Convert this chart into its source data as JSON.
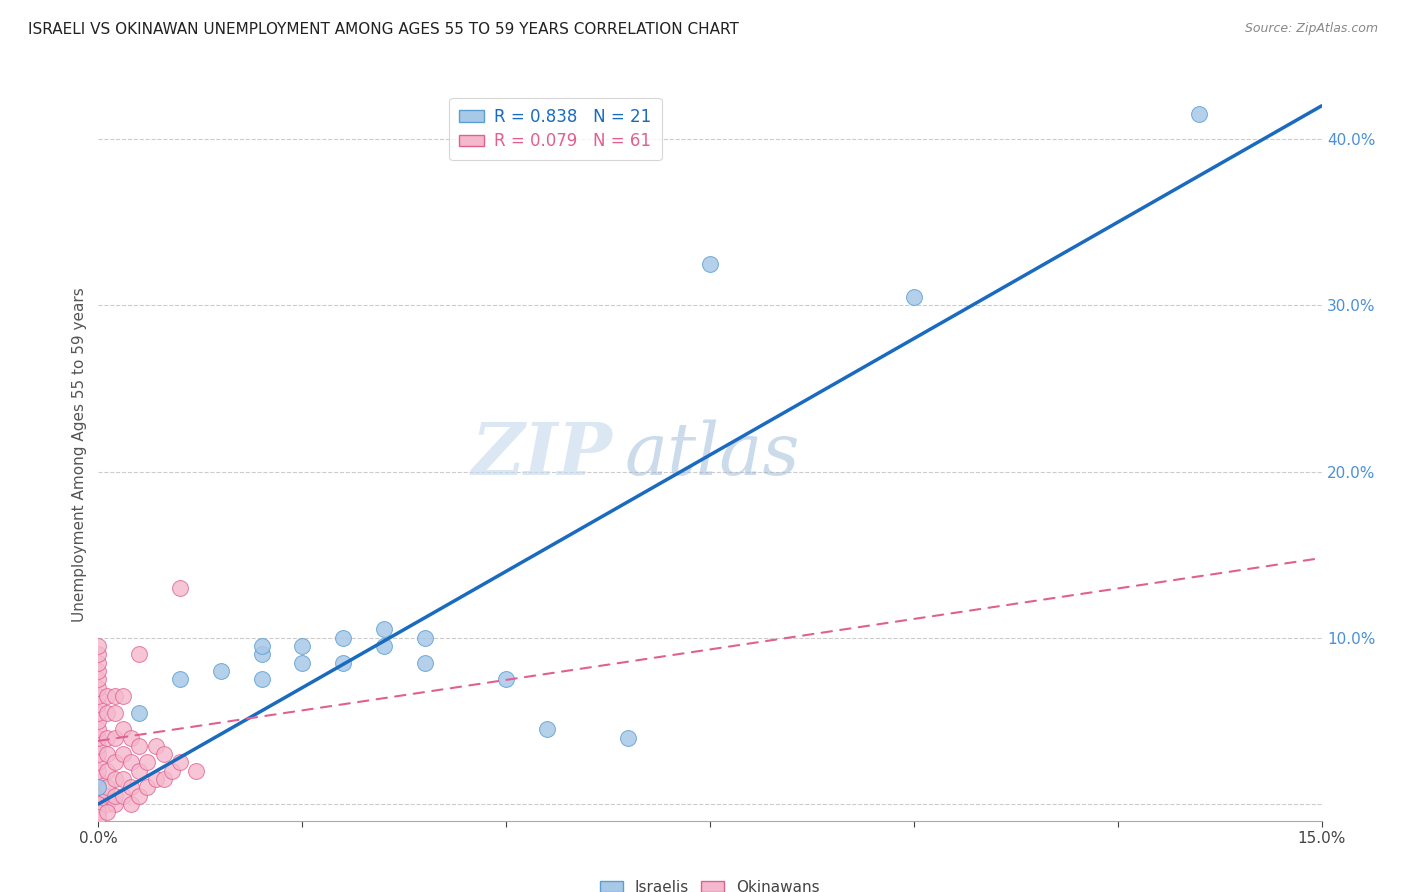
{
  "title": "ISRAELI VS OKINAWAN UNEMPLOYMENT AMONG AGES 55 TO 59 YEARS CORRELATION CHART",
  "source": "Source: ZipAtlas.com",
  "ylabel": "Unemployment Among Ages 55 to 59 years",
  "xlim": [
    0.0,
    0.15
  ],
  "ylim": [
    -0.01,
    0.43
  ],
  "x_ticks": [
    0.0,
    0.025,
    0.05,
    0.075,
    0.1,
    0.125,
    0.15
  ],
  "y_ticks_right": [
    0.0,
    0.1,
    0.2,
    0.3,
    0.4
  ],
  "israeli_color": "#a8c8e8",
  "israeli_edge": "#5a9fd4",
  "okinawan_color": "#f4b8cc",
  "okinawan_edge": "#e06090",
  "blue_line_color": "#1a6bbf",
  "pink_line_color": "#e06090",
  "legend_israeli_label": "R = 0.838   N = 21",
  "legend_okinawan_label": "R = 0.079   N = 61",
  "watermark_zip": "ZIP",
  "watermark_atlas": "atlas",
  "israeli_points": [
    [
      0.0,
      0.01
    ],
    [
      0.005,
      0.055
    ],
    [
      0.01,
      0.075
    ],
    [
      0.015,
      0.08
    ],
    [
      0.02,
      0.075
    ],
    [
      0.02,
      0.09
    ],
    [
      0.02,
      0.095
    ],
    [
      0.025,
      0.085
    ],
    [
      0.025,
      0.095
    ],
    [
      0.03,
      0.085
    ],
    [
      0.03,
      0.1
    ],
    [
      0.035,
      0.095
    ],
    [
      0.035,
      0.105
    ],
    [
      0.04,
      0.085
    ],
    [
      0.04,
      0.1
    ],
    [
      0.05,
      0.075
    ],
    [
      0.055,
      0.045
    ],
    [
      0.065,
      0.04
    ],
    [
      0.075,
      0.325
    ],
    [
      0.1,
      0.305
    ],
    [
      0.135,
      0.415
    ]
  ],
  "okinawan_points": [
    [
      0.0,
      0.005
    ],
    [
      0.0,
      0.01
    ],
    [
      0.0,
      0.015
    ],
    [
      0.0,
      0.02
    ],
    [
      0.0,
      0.025
    ],
    [
      0.0,
      0.03
    ],
    [
      0.0,
      0.035
    ],
    [
      0.0,
      0.04
    ],
    [
      0.0,
      0.045
    ],
    [
      0.0,
      0.05
    ],
    [
      0.0,
      0.055
    ],
    [
      0.0,
      0.06
    ],
    [
      0.0,
      0.065
    ],
    [
      0.0,
      0.07
    ],
    [
      0.0,
      0.075
    ],
    [
      0.0,
      0.08
    ],
    [
      0.0,
      0.085
    ],
    [
      0.0,
      0.09
    ],
    [
      0.0,
      0.095
    ],
    [
      0.001,
      0.0
    ],
    [
      0.001,
      0.005
    ],
    [
      0.001,
      0.01
    ],
    [
      0.001,
      0.02
    ],
    [
      0.001,
      0.03
    ],
    [
      0.001,
      0.04
    ],
    [
      0.001,
      0.055
    ],
    [
      0.001,
      0.065
    ],
    [
      0.002,
      0.0
    ],
    [
      0.002,
      0.005
    ],
    [
      0.002,
      0.015
    ],
    [
      0.002,
      0.025
    ],
    [
      0.002,
      0.04
    ],
    [
      0.002,
      0.055
    ],
    [
      0.002,
      0.065
    ],
    [
      0.003,
      0.005
    ],
    [
      0.003,
      0.015
    ],
    [
      0.003,
      0.03
    ],
    [
      0.003,
      0.045
    ],
    [
      0.003,
      0.065
    ],
    [
      0.004,
      0.0
    ],
    [
      0.004,
      0.01
    ],
    [
      0.004,
      0.025
    ],
    [
      0.004,
      0.04
    ],
    [
      0.005,
      0.005
    ],
    [
      0.005,
      0.02
    ],
    [
      0.005,
      0.035
    ],
    [
      0.005,
      0.09
    ],
    [
      0.006,
      0.01
    ],
    [
      0.006,
      0.025
    ],
    [
      0.007,
      0.015
    ],
    [
      0.007,
      0.035
    ],
    [
      0.008,
      0.015
    ],
    [
      0.008,
      0.03
    ],
    [
      0.009,
      0.02
    ],
    [
      0.01,
      0.025
    ],
    [
      0.01,
      0.13
    ],
    [
      0.012,
      0.02
    ],
    [
      0.0,
      0.0
    ],
    [
      0.0,
      -0.005
    ],
    [
      0.0,
      -0.008
    ],
    [
      0.001,
      -0.005
    ]
  ],
  "blue_line_x": [
    0.0,
    0.15
  ],
  "blue_line_y": [
    0.0,
    0.42
  ],
  "pink_line_x": [
    0.0,
    0.15
  ],
  "pink_line_y": [
    0.038,
    0.148
  ]
}
